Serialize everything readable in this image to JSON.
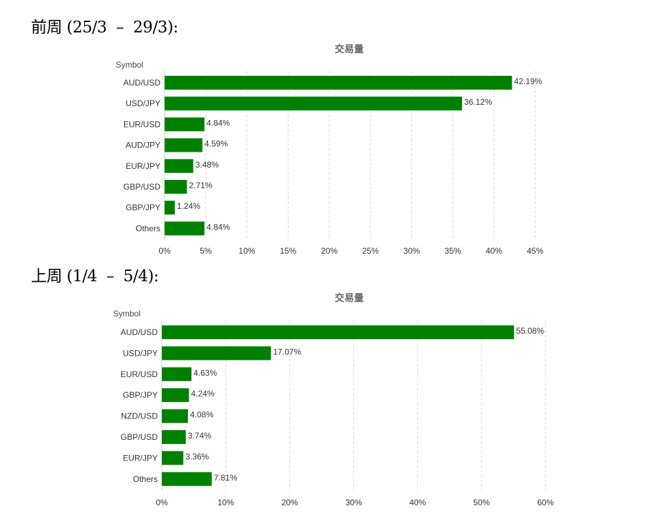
{
  "sections": [
    {
      "heading": "前周 (25/3  –  29/3):"
    },
    {
      "heading": "上周 (1/4  –  5/4):"
    }
  ],
  "colors": {
    "bar": "#008000",
    "grid": "#d9d9d9",
    "title": "#666666",
    "text": "#333333"
  },
  "chart_data": [
    {
      "type": "bar",
      "orientation": "horizontal",
      "title": "交易量",
      "ylabel": "Symbol",
      "xlabel": "",
      "categories": [
        "AUD/USD",
        "USD/JPY",
        "EUR/USD",
        "AUD/JPY",
        "EUR/JPY",
        "GBP/USD",
        "GBP/JPY",
        "Others"
      ],
      "values": [
        42.19,
        36.12,
        4.84,
        4.59,
        3.48,
        2.71,
        1.24,
        4.84
      ],
      "value_labels": [
        "42.19%",
        "36.12%",
        "4.84%",
        "4.59%",
        "3.48%",
        "2.71%",
        "1.24%",
        "4.84%"
      ],
      "xlim": [
        0,
        45
      ],
      "xticks": [
        0,
        5,
        10,
        15,
        20,
        25,
        30,
        35,
        40,
        45
      ],
      "xtick_labels": [
        "0%",
        "5%",
        "10%",
        "15%",
        "20%",
        "25%",
        "30%",
        "35%",
        "40%",
        "45%"
      ],
      "grid": true,
      "legend": "none"
    },
    {
      "type": "bar",
      "orientation": "horizontal",
      "title": "交易量",
      "ylabel": "Symbol",
      "xlabel": "",
      "categories": [
        "AUD/USD",
        "USD/JPY",
        "EUR/USD",
        "GBP/JPY",
        "NZD/USD",
        "GBP/USD",
        "EUR/JPY",
        "Others"
      ],
      "values": [
        55.08,
        17.07,
        4.63,
        4.24,
        4.08,
        3.74,
        3.36,
        7.81
      ],
      "value_labels": [
        "55.08%",
        "17.07%",
        "4.63%",
        "4.24%",
        "4.08%",
        "3.74%",
        "3.36%",
        "7.81%"
      ],
      "xlim": [
        0,
        60
      ],
      "xticks": [
        0,
        10,
        20,
        30,
        40,
        50,
        60
      ],
      "xtick_labels": [
        "0%",
        "10%",
        "20%",
        "30%",
        "40%",
        "50%",
        "60%"
      ],
      "grid": true,
      "legend": "none"
    }
  ]
}
